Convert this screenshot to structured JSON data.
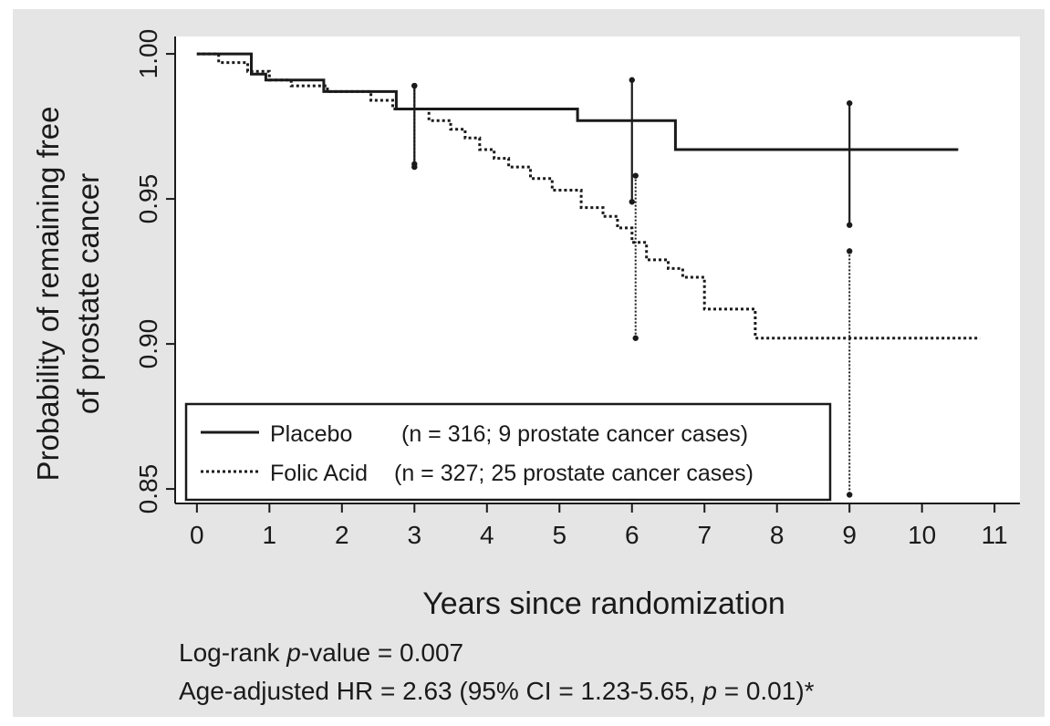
{
  "chart_data": {
    "type": "line",
    "xlabel": "Years since randomization",
    "ylabel_lines": [
      "Probability of remaining free",
      "of prostate cancer"
    ],
    "xlim": [
      -0.3,
      11.35
    ],
    "ylim": [
      0.845,
      1.006
    ],
    "x_ticks": [
      0,
      1,
      2,
      3,
      4,
      5,
      6,
      7,
      8,
      9,
      10,
      11
    ],
    "x_tick_labels": [
      "0",
      "1",
      "2",
      "3",
      "4",
      "5",
      "6",
      "7",
      "8",
      "9",
      "10",
      "11"
    ],
    "y_ticks": [
      0.85,
      0.9,
      0.95,
      1.0
    ],
    "y_tick_labels": [
      "0.85",
      "0.90",
      "0.95",
      "1.00"
    ],
    "grid": false,
    "legend_position": "bottom-left",
    "series": [
      {
        "name": "Placebo",
        "legend_detail": "(n = 316; 9 prostate cancer cases)",
        "style": "solid",
        "step": true,
        "x": [
          0,
          0.75,
          0.75,
          0.95,
          0.95,
          1.75,
          1.75,
          2.75,
          2.75,
          5.25,
          5.25,
          6.6,
          6.6,
          10.5
        ],
        "y": [
          1.0,
          1.0,
          0.993,
          0.993,
          0.991,
          0.991,
          0.987,
          0.987,
          0.981,
          0.981,
          0.977,
          0.977,
          0.967,
          0.967
        ],
        "error_bars": [
          {
            "x": 3.0,
            "lower": 0.961,
            "upper": 0.989
          },
          {
            "x": 6.0,
            "lower": 0.949,
            "upper": 0.991
          },
          {
            "x": 9.0,
            "lower": 0.941,
            "upper": 0.983
          }
        ]
      },
      {
        "name": "Folic Acid",
        "legend_detail": "(n = 327; 25 prostate cancer cases)",
        "style": "dotted",
        "step": true,
        "x": [
          0,
          0.3,
          0.3,
          0.7,
          0.7,
          1.0,
          1.0,
          1.3,
          1.3,
          1.8,
          1.8,
          2.4,
          2.4,
          2.7,
          2.7,
          3.2,
          3.2,
          3.5,
          3.5,
          3.7,
          3.7,
          3.9,
          3.9,
          4.1,
          4.1,
          4.3,
          4.3,
          4.6,
          4.6,
          4.9,
          4.9,
          5.3,
          5.3,
          5.6,
          5.6,
          5.8,
          5.8,
          6.0,
          6.0,
          6.2,
          6.2,
          6.5,
          6.5,
          6.7,
          6.7,
          7.0,
          7.0,
          7.7,
          7.7,
          10.8
        ],
        "y": [
          1.0,
          1.0,
          0.997,
          0.997,
          0.994,
          0.994,
          0.991,
          0.991,
          0.989,
          0.989,
          0.987,
          0.987,
          0.984,
          0.984,
          0.981,
          0.981,
          0.977,
          0.977,
          0.974,
          0.974,
          0.971,
          0.971,
          0.967,
          0.967,
          0.964,
          0.964,
          0.961,
          0.961,
          0.957,
          0.957,
          0.953,
          0.953,
          0.947,
          0.947,
          0.944,
          0.944,
          0.94,
          0.94,
          0.935,
          0.935,
          0.929,
          0.929,
          0.926,
          0.926,
          0.923,
          0.923,
          0.912,
          0.912,
          0.902,
          0.902
        ],
        "error_bars": [
          {
            "x": 3.0,
            "lower": 0.962,
            "upper": 0.989
          },
          {
            "x": 6.05,
            "lower": 0.902,
            "upper": 0.958
          },
          {
            "x": 9.0,
            "lower": 0.848,
            "upper": 0.932
          }
        ]
      }
    ]
  },
  "footnotes": {
    "logrank_prefix": "Log-rank ",
    "logrank_p": "p",
    "logrank_suffix": "-value = 0.007",
    "hr_prefix": "Age-adjusted HR = 2.63 (95% CI = 1.23-5.65, ",
    "hr_p": "p",
    "hr_suffix": " = 0.01)*"
  },
  "colors": {
    "background": "#e5e5e5",
    "plot_area": "#ffffff",
    "lines": "#1a1a1a"
  }
}
